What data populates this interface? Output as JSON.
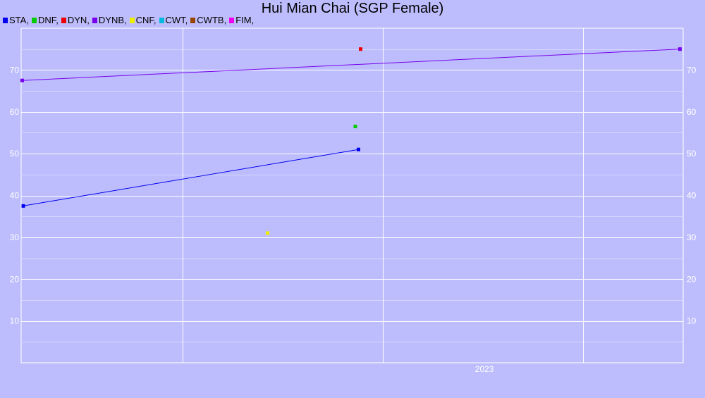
{
  "chart_data": {
    "type": "scatter",
    "title": "Hui Mian Chai (SGP Female)",
    "xlabel": "",
    "ylabel": "",
    "ylim": [
      0,
      80
    ],
    "y_ticks": [
      10,
      20,
      30,
      40,
      50,
      60,
      70
    ],
    "x_ticks": [
      {
        "label": "2023",
        "x": "2023-01-01"
      }
    ],
    "xlim": [
      "2021-10-20",
      "2023-07-08"
    ],
    "grid": true,
    "legend_position": "top-left",
    "legend": [
      {
        "name": "STA",
        "color": "#0000ee"
      },
      {
        "name": "DNF",
        "color": "#00cc00"
      },
      {
        "name": "DYN",
        "color": "#ee0000"
      },
      {
        "name": "DYNB",
        "color": "#7700ee"
      },
      {
        "name": "CNF",
        "color": "#eeee00"
      },
      {
        "name": "CWT",
        "color": "#00bbdd"
      },
      {
        "name": "CWTB",
        "color": "#994400"
      },
      {
        "name": "FIM",
        "color": "#ee00ee"
      }
    ],
    "series": [
      {
        "name": "STA",
        "color": "#0000ee",
        "connect": true,
        "points": [
          {
            "x": "2021-10-22",
            "y": 37.5
          },
          {
            "x": "2022-09-04",
            "y": 51
          }
        ]
      },
      {
        "name": "DNF",
        "color": "#00cc00",
        "connect": false,
        "points": [
          {
            "x": "2022-09-01",
            "y": 56.5
          }
        ]
      },
      {
        "name": "DYN",
        "color": "#ee0000",
        "connect": false,
        "points": [
          {
            "x": "2022-09-06",
            "y": 75
          }
        ]
      },
      {
        "name": "DYNB",
        "color": "#7700ee",
        "connect": true,
        "points": [
          {
            "x": "2021-10-21",
            "y": 67.5
          },
          {
            "x": "2023-07-05",
            "y": 75
          }
        ]
      },
      {
        "name": "CNF",
        "color": "#eeee00",
        "connect": false,
        "points": [
          {
            "x": "2022-06-10",
            "y": 31
          }
        ]
      }
    ]
  }
}
